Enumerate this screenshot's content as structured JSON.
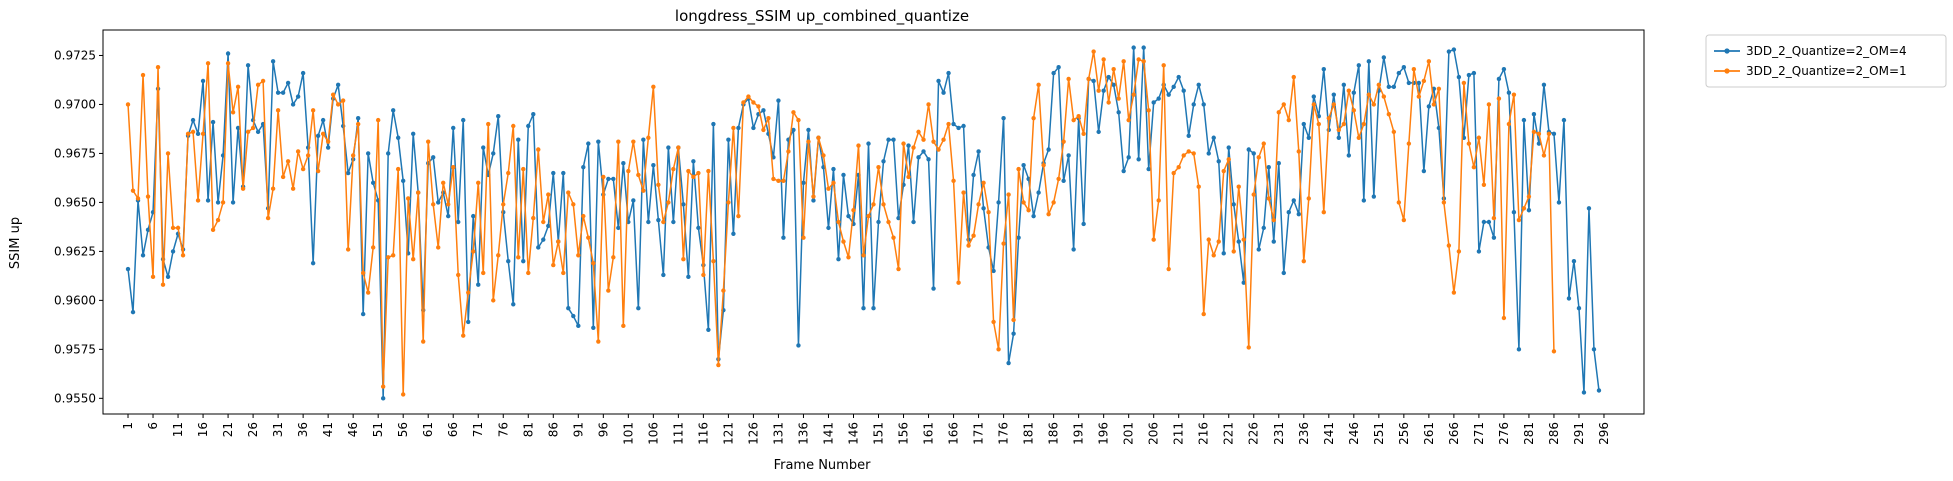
{
  "chart_data": {
    "type": "line",
    "title": "longdress_SSIM up_combined_quantize",
    "xlabel": "Frame Number",
    "ylabel": "SSIM up",
    "xlim": [
      -4,
      304
    ],
    "ylim": [
      0.9542,
      0.9738
    ],
    "x_ticks": [
      1,
      6,
      11,
      16,
      21,
      26,
      31,
      36,
      41,
      46,
      51,
      56,
      61,
      66,
      71,
      76,
      81,
      86,
      91,
      96,
      101,
      106,
      111,
      116,
      121,
      126,
      131,
      136,
      141,
      146,
      151,
      156,
      161,
      166,
      171,
      176,
      181,
      186,
      191,
      196,
      201,
      206,
      211,
      216,
      221,
      226,
      231,
      236,
      241,
      246,
      251,
      256,
      261,
      266,
      271,
      276,
      281,
      286,
      291,
      296
    ],
    "y_ticks": [
      0.955,
      0.9575,
      0.96,
      0.9625,
      0.965,
      0.9675,
      0.97,
      0.9725
    ],
    "y_tick_labels": [
      "0.9550",
      "0.9575",
      "0.9600",
      "0.9625",
      "0.9650",
      "0.9675",
      "0.9700",
      "0.9725"
    ],
    "grid": false,
    "legend_position": "outside-top-right",
    "x_start": 1,
    "series": [
      {
        "name": "3DD_2_Quantize=2_OM=4",
        "color": "#1f77b4",
        "values": [
          0.9616,
          0.9594,
          0.9651,
          0.9623,
          0.9636,
          0.9645,
          0.9708,
          0.9621,
          0.9612,
          0.9625,
          0.9634,
          0.9626,
          0.9684,
          0.9692,
          0.9685,
          0.9712,
          0.9651,
          0.9691,
          0.965,
          0.9674,
          0.9726,
          0.965,
          0.9688,
          0.9658,
          0.972,
          0.9692,
          0.9686,
          0.969,
          0.9647,
          0.9722,
          0.9706,
          0.9706,
          0.9711,
          0.97,
          0.9704,
          0.9716,
          0.9678,
          0.9619,
          0.9684,
          0.9692,
          0.9678,
          0.9703,
          0.971,
          0.9689,
          0.9665,
          0.9672,
          0.9693,
          0.9593,
          0.9675,
          0.966,
          0.9651,
          0.955,
          0.9675,
          0.9697,
          0.9683,
          0.9661,
          0.9624,
          0.9685,
          0.9655,
          0.9595,
          0.967,
          0.9673,
          0.965,
          0.9655,
          0.9643,
          0.9688,
          0.964,
          0.9692,
          0.9589,
          0.9643,
          0.9608,
          0.9678,
          0.9664,
          0.9675,
          0.9694,
          0.9645,
          0.962,
          0.9598,
          0.9682,
          0.962,
          0.9689,
          0.9695,
          0.9627,
          0.9631,
          0.9638,
          0.9665,
          0.963,
          0.9665,
          0.9596,
          0.9592,
          0.9587,
          0.9668,
          0.968,
          0.9586,
          0.9681,
          0.9654,
          0.9662,
          0.9662,
          0.9637,
          0.967,
          0.964,
          0.9651,
          0.9596,
          0.9682,
          0.964,
          0.9669,
          0.9641,
          0.9613,
          0.9678,
          0.964,
          0.9678,
          0.9649,
          0.9612,
          0.9671,
          0.9637,
          0.9618,
          0.9585,
          0.969,
          0.957,
          0.9595,
          0.9682,
          0.9634,
          0.9688,
          0.97,
          0.9703,
          0.9688,
          0.9695,
          0.9697,
          0.9685,
          0.9673,
          0.9702,
          0.9632,
          0.9682,
          0.9687,
          0.9577,
          0.966,
          0.9687,
          0.9651,
          0.9683,
          0.9668,
          0.9637,
          0.9667,
          0.9621,
          0.9664,
          0.9643,
          0.9639,
          0.9664,
          0.9596,
          0.968,
          0.9596,
          0.964,
          0.9671,
          0.9682,
          0.9682,
          0.9642,
          0.9659,
          0.9679,
          0.964,
          0.9673,
          0.9676,
          0.9672,
          0.9606,
          0.9712,
          0.9706,
          0.9716,
          0.969,
          0.9688,
          0.9689,
          0.9631,
          0.9664,
          0.9676,
          0.9647,
          0.9627,
          0.9615,
          0.965,
          0.9693,
          0.9568,
          0.9583,
          0.9632,
          0.9669,
          0.9662,
          0.9643,
          0.9655,
          0.967,
          0.9677,
          0.9716,
          0.9719,
          0.9661,
          0.9674,
          0.9626,
          0.9693,
          0.9639,
          0.9713,
          0.9712,
          0.9686,
          0.9707,
          0.9714,
          0.971,
          0.9696,
          0.9666,
          0.9673,
          0.9729,
          0.9672,
          0.9729,
          0.9667,
          0.9701,
          0.9703,
          0.971,
          0.9705,
          0.9709,
          0.9714,
          0.9707,
          0.9684,
          0.97,
          0.971,
          0.97,
          0.9675,
          0.9683,
          0.9671,
          0.9624,
          0.9678,
          0.9649,
          0.963,
          0.9609,
          0.9677,
          0.9675,
          0.9626,
          0.9637,
          0.9668,
          0.963,
          0.967,
          0.9614,
          0.9645,
          0.9651,
          0.9644,
          0.969,
          0.9683,
          0.9704,
          0.9694,
          0.9718,
          0.9687,
          0.9705,
          0.9683,
          0.971,
          0.9674,
          0.9706,
          0.972,
          0.9651,
          0.9722,
          0.9653,
          0.9707,
          0.9724,
          0.9709,
          0.9709,
          0.9716,
          0.9719,
          0.9711,
          0.9711,
          0.9711,
          0.9666,
          0.9699,
          0.9708,
          0.9688,
          0.9652,
          0.9727,
          0.9728,
          0.9714,
          0.9683,
          0.9715,
          0.9716,
          0.9625,
          0.964,
          0.964,
          0.9632,
          0.9713,
          0.9718,
          0.9706,
          0.9645,
          0.9575,
          0.9692,
          0.9646,
          0.9695,
          0.968,
          0.971,
          0.9686,
          0.9685,
          0.965,
          0.9692,
          0.9601,
          0.962,
          0.9596,
          0.9553,
          0.9647,
          0.9575,
          0.9554
        ]
      },
      {
        "name": "3DD_2_Quantize=2_OM=1",
        "color": "#ff7f0e",
        "values": [
          0.97,
          0.9656,
          0.9652,
          0.9715,
          0.9653,
          0.9612,
          0.9719,
          0.9608,
          0.9675,
          0.9637,
          0.9637,
          0.9623,
          0.9685,
          0.9686,
          0.9651,
          0.9685,
          0.9721,
          0.9636,
          0.9641,
          0.965,
          0.9721,
          0.9696,
          0.9709,
          0.9657,
          0.9686,
          0.9688,
          0.971,
          0.9712,
          0.9642,
          0.9657,
          0.9697,
          0.9663,
          0.9671,
          0.9657,
          0.9676,
          0.9667,
          0.9674,
          0.9697,
          0.9666,
          0.9685,
          0.9681,
          0.9705,
          0.97,
          0.9702,
          0.9626,
          0.9674,
          0.969,
          0.9614,
          0.9604,
          0.9627,
          0.9692,
          0.9556,
          0.9622,
          0.9623,
          0.9667,
          0.9552,
          0.9652,
          0.9621,
          0.9655,
          0.9579,
          0.9681,
          0.9649,
          0.9627,
          0.966,
          0.9649,
          0.9668,
          0.9613,
          0.9582,
          0.9604,
          0.9625,
          0.966,
          0.9614,
          0.969,
          0.96,
          0.9623,
          0.9649,
          0.9665,
          0.9689,
          0.9622,
          0.9667,
          0.9614,
          0.9642,
          0.9677,
          0.964,
          0.9654,
          0.9618,
          0.963,
          0.9614,
          0.9655,
          0.9649,
          0.9623,
          0.9643,
          0.9632,
          0.9619,
          0.9579,
          0.9663,
          0.9605,
          0.9622,
          0.9681,
          0.9587,
          0.9666,
          0.9681,
          0.9664,
          0.9656,
          0.9683,
          0.9709,
          0.9659,
          0.964,
          0.965,
          0.9667,
          0.9678,
          0.9621,
          0.9666,
          0.9663,
          0.9665,
          0.9613,
          0.9666,
          0.962,
          0.9567,
          0.9605,
          0.965,
          0.9688,
          0.9643,
          0.9701,
          0.9704,
          0.9701,
          0.9699,
          0.9687,
          0.9693,
          0.9662,
          0.9661,
          0.9661,
          0.9676,
          0.9696,
          0.9692,
          0.9632,
          0.9681,
          0.9653,
          0.9683,
          0.9674,
          0.9657,
          0.966,
          0.964,
          0.963,
          0.9622,
          0.9646,
          0.9679,
          0.9623,
          0.9643,
          0.9649,
          0.9668,
          0.9649,
          0.964,
          0.9632,
          0.9616,
          0.968,
          0.9663,
          0.9678,
          0.9686,
          0.9682,
          0.97,
          0.9681,
          0.9677,
          0.9682,
          0.969,
          0.9661,
          0.9609,
          0.9655,
          0.9628,
          0.9633,
          0.9649,
          0.966,
          0.9645,
          0.9589,
          0.9575,
          0.9629,
          0.9654,
          0.959,
          0.9667,
          0.965,
          0.9646,
          0.9693,
          0.971,
          0.9669,
          0.9644,
          0.965,
          0.9662,
          0.9681,
          0.9713,
          0.9692,
          0.9694,
          0.9685,
          0.9713,
          0.9727,
          0.9707,
          0.9723,
          0.9701,
          0.9718,
          0.9703,
          0.9722,
          0.9692,
          0.9705,
          0.9723,
          0.9722,
          0.9697,
          0.9631,
          0.9651,
          0.972,
          0.9616,
          0.9665,
          0.9668,
          0.9674,
          0.9676,
          0.9675,
          0.9658,
          0.9593,
          0.9631,
          0.9623,
          0.963,
          0.9666,
          0.9672,
          0.9625,
          0.9658,
          0.9631,
          0.9576,
          0.9654,
          0.9673,
          0.968,
          0.9652,
          0.9641,
          0.9696,
          0.97,
          0.9692,
          0.9714,
          0.9676,
          0.962,
          0.9652,
          0.97,
          0.969,
          0.9645,
          0.9693,
          0.97,
          0.9687,
          0.969,
          0.9707,
          0.9697,
          0.9683,
          0.969,
          0.9705,
          0.97,
          0.971,
          0.9704,
          0.9695,
          0.9686,
          0.965,
          0.9641,
          0.968,
          0.9718,
          0.9704,
          0.9712,
          0.9722,
          0.97,
          0.9708,
          0.965,
          0.9628,
          0.9604,
          0.9625,
          0.9711,
          0.968,
          0.9668,
          0.9683,
          0.9659,
          0.97,
          0.9642,
          0.9703,
          0.9591,
          0.969,
          0.9705,
          0.9641,
          0.9647,
          0.9653,
          0.9686,
          0.9685,
          0.9674,
          0.9685,
          0.9574
        ]
      }
    ]
  }
}
